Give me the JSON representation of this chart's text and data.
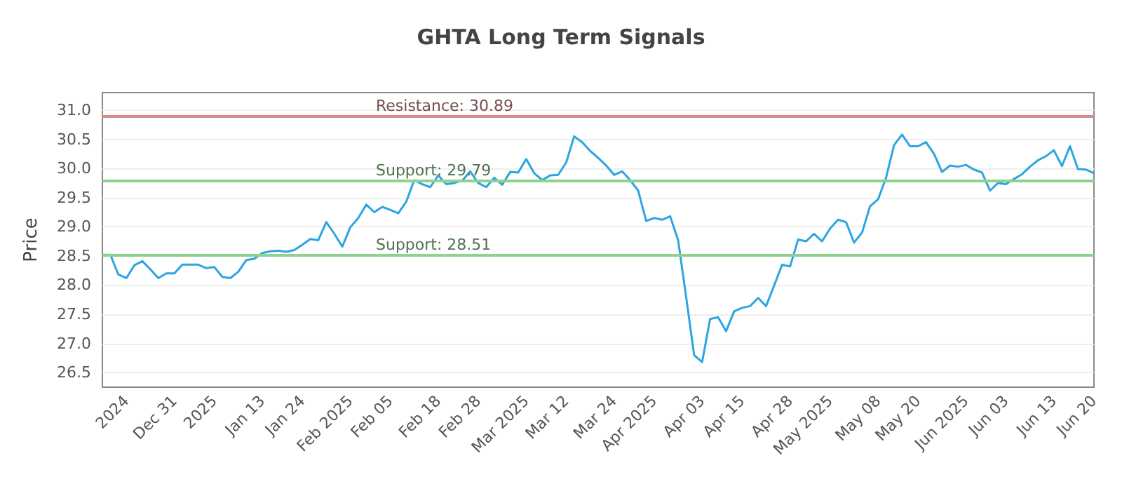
{
  "chart_data": {
    "type": "line",
    "title": "GHTA Long Term Signals",
    "ylabel": "Price",
    "categories": [
      null,
      null,
      null,
      "2024",
      null,
      null,
      null,
      null,
      null,
      "Dec 31",
      null,
      null,
      null,
      null,
      "2025",
      null,
      null,
      null,
      null,
      null,
      "Jan 13",
      null,
      null,
      null,
      null,
      "Jan 24",
      null,
      null,
      null,
      null,
      null,
      "Feb 2025",
      null,
      null,
      null,
      null,
      "Feb 05",
      null,
      null,
      null,
      null,
      null,
      "Feb 18",
      null,
      null,
      null,
      null,
      "Feb 28",
      null,
      null,
      null,
      null,
      null,
      "Mar 2025",
      null,
      null,
      null,
      null,
      "Mar 12",
      null,
      null,
      null,
      null,
      null,
      "Mar 24",
      null,
      null,
      null,
      null,
      "Apr 2025",
      null,
      null,
      null,
      null,
      null,
      "Apr 03",
      null,
      null,
      null,
      null,
      "Apr 15",
      null,
      null,
      null,
      null,
      null,
      "Apr 28",
      null,
      null,
      null,
      null,
      "May 2025",
      null,
      null,
      null,
      null,
      null,
      "May 08",
      null,
      null,
      null,
      null,
      "May 20",
      null,
      null,
      null,
      null,
      null,
      "Jun 2025",
      null,
      null,
      null,
      null,
      "Jun 03",
      null,
      null,
      null,
      null,
      null,
      "Jun 13",
      null,
      null,
      null,
      null,
      "Jun 20"
    ],
    "series": [
      {
        "color": "#2ca5e0",
        "values": [
          28.52,
          28.52,
          28.18,
          28.12,
          28.34,
          28.41,
          28.27,
          28.12,
          28.2,
          28.2,
          28.35,
          28.35,
          28.35,
          28.29,
          28.31,
          28.14,
          28.12,
          28.23,
          28.43,
          28.45,
          28.55,
          28.58,
          28.59,
          28.57,
          28.6,
          28.69,
          28.79,
          28.77,
          29.08,
          28.88,
          28.66,
          28.99,
          29.15,
          29.38,
          29.25,
          29.34,
          29.29,
          29.23,
          29.43,
          29.8,
          29.73,
          29.68,
          29.88,
          29.73,
          29.75,
          29.79,
          29.95,
          29.75,
          29.68,
          29.84,
          29.72,
          29.94,
          29.93,
          30.16,
          29.92,
          29.8,
          29.88,
          29.89,
          30.1,
          30.55,
          30.45,
          30.3,
          30.18,
          30.05,
          29.89,
          29.95,
          29.8,
          29.62,
          29.1,
          29.15,
          29.12,
          29.18,
          28.77,
          27.8,
          26.8,
          26.68,
          27.42,
          27.45,
          27.21,
          27.55,
          27.61,
          27.64,
          27.78,
          27.64,
          27.99,
          28.35,
          28.32,
          28.78,
          28.75,
          28.88,
          28.75,
          28.97,
          29.12,
          29.08,
          28.73,
          28.9,
          29.35,
          29.47,
          29.84,
          30.4,
          30.58,
          30.38,
          30.38,
          30.45,
          30.25,
          29.94,
          30.05,
          30.03,
          30.06,
          29.98,
          29.93,
          29.62,
          29.75,
          29.73,
          29.82,
          29.9,
          30.03,
          30.14,
          30.21,
          30.31,
          30.04,
          30.38,
          29.99,
          29.98,
          29.92
        ]
      }
    ],
    "ylim": [
      26.25,
      31.3
    ],
    "yticks": [
      26.5,
      {
        "value": 27,
        "label": "27.0"
      },
      27.5,
      {
        "value": 28,
        "label": "28.0"
      },
      28.5,
      {
        "value": 29,
        "label": "29.0"
      },
      29.5,
      {
        "value": 30,
        "label": "30.0"
      },
      30.5,
      {
        "value": 31,
        "label": "31.0"
      }
    ],
    "grid": "y",
    "marker": "none",
    "line_style": "solid",
    "ref_lines": [
      {
        "axis": "y",
        "value": 30.89,
        "label": "Resistance: 30.89",
        "color": "#d98c8c"
      },
      {
        "axis": "y",
        "value": 29.79,
        "label": "Support: 29.79",
        "color": "#8fd18f"
      },
      {
        "axis": "y",
        "value": 28.51,
        "label": "Support: 28.51",
        "color": "#8fd18f"
      }
    ]
  }
}
